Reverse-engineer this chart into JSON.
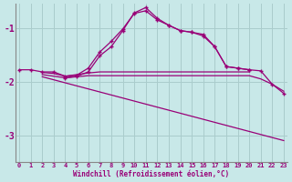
{
  "bg_color": "#c8e8e8",
  "line_color": "#990077",
  "grid_color": "#aacccc",
  "xlim": [
    -0.3,
    23.3
  ],
  "ylim": [
    -3.5,
    -0.55
  ],
  "yticks": [
    -3,
    -2,
    -1
  ],
  "xticks": [
    0,
    1,
    2,
    3,
    4,
    5,
    6,
    7,
    8,
    9,
    10,
    11,
    12,
    13,
    14,
    15,
    16,
    17,
    18,
    19,
    20,
    21,
    22,
    23
  ],
  "xlabel": "Windchill (Refroidissement éolien,°C)",
  "lines": [
    {
      "x": [
        0,
        1,
        2,
        3,
        4,
        5,
        6,
        7,
        8,
        9,
        10,
        11,
        12,
        13,
        14,
        15,
        16,
        17,
        18,
        19,
        20,
        21,
        22,
        23
      ],
      "y": [
        -1.78,
        -1.78,
        -1.82,
        -1.82,
        -1.9,
        -1.88,
        -1.75,
        -1.45,
        -1.25,
        -1.02,
        -0.73,
        -0.68,
        -0.85,
        -0.95,
        -1.05,
        -1.08,
        -1.12,
        -1.35,
        -1.72,
        -1.75,
        -1.78,
        -1.8,
        -2.05,
        -2.22
      ],
      "marker": true
    },
    {
      "x": [
        4,
        5,
        6,
        7,
        8,
        9,
        10,
        11,
        12,
        13,
        14,
        15,
        16,
        17,
        18,
        19,
        20
      ],
      "y": [
        -1.93,
        -1.9,
        -1.82,
        -1.52,
        -1.35,
        -1.05,
        -0.72,
        -0.62,
        -0.82,
        -0.95,
        -1.05,
        -1.08,
        -1.15,
        -1.35,
        -1.72,
        -1.75,
        -1.78
      ],
      "marker": true
    },
    {
      "x": [
        2,
        3,
        4,
        5,
        6,
        7,
        20
      ],
      "y": [
        -1.83,
        -1.85,
        -1.9,
        -1.87,
        -1.84,
        -1.82,
        -1.82
      ],
      "marker": false
    },
    {
      "x": [
        2,
        3,
        4,
        5,
        6,
        7,
        20,
        21,
        22,
        23
      ],
      "y": [
        -1.87,
        -1.9,
        -1.93,
        -1.91,
        -1.89,
        -1.89,
        -1.89,
        -1.95,
        -2.05,
        -2.18
      ],
      "marker": false
    },
    {
      "x": [
        2,
        23
      ],
      "y": [
        -1.91,
        -3.1
      ],
      "marker": false
    }
  ]
}
